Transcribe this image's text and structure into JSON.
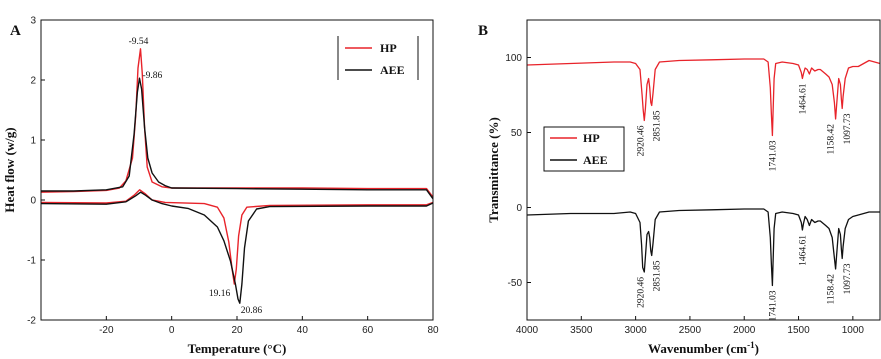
{
  "chart_data": [
    {
      "panel": "A",
      "type": "line",
      "xlabel": "Temperature (°C)",
      "ylabel": "Heat flow (w/g)",
      "xlim": [
        -40,
        80
      ],
      "ylim": [
        -2,
        3
      ],
      "xticks": [
        -20,
        0,
        20,
        40,
        60,
        80
      ],
      "yticks": [
        -2,
        -1,
        0,
        1,
        2,
        3
      ],
      "legend": {
        "placement": "top-right",
        "entries": [
          "HP",
          "AEE"
        ]
      },
      "colors": {
        "HP": "#e8232a",
        "AEE": "#111111"
      },
      "series": [
        {
          "name": "HP",
          "points": [
            [
              -40,
              0.13
            ],
            [
              -30,
              0.14
            ],
            [
              -20,
              0.16
            ],
            [
              -16,
              0.2
            ],
            [
              -14,
              0.32
            ],
            [
              -12,
              0.7
            ],
            [
              -11,
              1.4
            ],
            [
              -10.3,
              2.2
            ],
            [
              -9.54,
              2.52
            ],
            [
              -9,
              2.1
            ],
            [
              -8.3,
              1.2
            ],
            [
              -7.5,
              0.55
            ],
            [
              -6,
              0.3
            ],
            [
              -3,
              0.22
            ],
            [
              0,
              0.2
            ],
            [
              20,
              0.2
            ],
            [
              40,
              0.2
            ],
            [
              60,
              0.19
            ],
            [
              78,
              0.19
            ],
            [
              80,
              0.05
            ]
          ]
        },
        {
          "name": "HP",
          "points": [
            [
              -40,
              -0.04
            ],
            [
              -20,
              -0.05
            ],
            [
              -14,
              -0.02
            ],
            [
              -11.5,
              0.08
            ],
            [
              -9.8,
              0.17
            ],
            [
              -8,
              0.1
            ],
            [
              -6,
              0.0
            ],
            [
              -2,
              -0.04
            ],
            [
              10,
              -0.06
            ],
            [
              14,
              -0.12
            ],
            [
              16,
              -0.3
            ],
            [
              17.5,
              -0.7
            ],
            [
              18.5,
              -1.15
            ],
            [
              19.16,
              -1.4
            ],
            [
              19.8,
              -1.15
            ],
            [
              20.5,
              -0.6
            ],
            [
              21.5,
              -0.25
            ],
            [
              23,
              -0.12
            ],
            [
              30,
              -0.09
            ],
            [
              60,
              -0.08
            ],
            [
              78,
              -0.08
            ],
            [
              80,
              -0.04
            ]
          ]
        },
        {
          "name": "AEE",
          "points": [
            [
              -40,
              0.15
            ],
            [
              -30,
              0.15
            ],
            [
              -20,
              0.17
            ],
            [
              -15,
              0.22
            ],
            [
              -13,
              0.4
            ],
            [
              -11.5,
              1.1
            ],
            [
              -10.5,
              1.8
            ],
            [
              -9.86,
              2.03
            ],
            [
              -9.2,
              1.85
            ],
            [
              -8.3,
              1.2
            ],
            [
              -7.3,
              0.7
            ],
            [
              -6,
              0.45
            ],
            [
              -4,
              0.3
            ],
            [
              -2,
              0.24
            ],
            [
              0,
              0.2
            ],
            [
              20,
              0.19
            ],
            [
              40,
              0.18
            ],
            [
              60,
              0.17
            ],
            [
              78,
              0.17
            ],
            [
              80,
              0.02
            ]
          ]
        },
        {
          "name": "AEE",
          "points": [
            [
              -40,
              -0.06
            ],
            [
              -20,
              -0.07
            ],
            [
              -14,
              -0.03
            ],
            [
              -11,
              0.07
            ],
            [
              -9.5,
              0.13
            ],
            [
              -8,
              0.08
            ],
            [
              -6,
              0.0
            ],
            [
              -3,
              -0.06
            ],
            [
              0,
              -0.1
            ],
            [
              5,
              -0.14
            ],
            [
              10,
              -0.25
            ],
            [
              14,
              -0.45
            ],
            [
              16,
              -0.68
            ],
            [
              18,
              -1.02
            ],
            [
              19.5,
              -1.4
            ],
            [
              20.3,
              -1.65
            ],
            [
              20.86,
              -1.72
            ],
            [
              21.5,
              -1.4
            ],
            [
              22.3,
              -0.8
            ],
            [
              23.5,
              -0.35
            ],
            [
              26,
              -0.15
            ],
            [
              30,
              -0.11
            ],
            [
              60,
              -0.1
            ],
            [
              78,
              -0.1
            ],
            [
              80,
              -0.05
            ]
          ]
        }
      ],
      "annotations": [
        {
          "text": "-9.54",
          "x": -9.54,
          "y": 2.52
        },
        {
          "text": "-9.86",
          "x": -9.86,
          "y": 2.03
        },
        {
          "text": "19.16",
          "x": 19.16,
          "y": -1.4
        },
        {
          "text": "20.86",
          "x": 20.86,
          "y": -1.72
        }
      ]
    },
    {
      "panel": "B",
      "type": "line",
      "xlabel": "Wavenumber (cm",
      "xlabel_sup": "-1",
      "xlabel_suffix": ")",
      "ylabel": "Transmittance (%)",
      "xlim": [
        4000,
        750
      ],
      "ylim": [
        -75,
        125
      ],
      "xticks": [
        4000,
        3500,
        3000,
        2500,
        2000,
        1500,
        1000
      ],
      "yticks": [
        -50,
        0,
        50,
        100
      ],
      "legend": {
        "placement": "center-left",
        "entries": [
          "HP",
          "AEE"
        ]
      },
      "colors": {
        "HP": "#e8232a",
        "AEE": "#111111"
      },
      "series": [
        {
          "name": "HP",
          "points": [
            [
              4000,
              95
            ],
            [
              3600,
              96
            ],
            [
              3200,
              97
            ],
            [
              3050,
              97
            ],
            [
              3000,
              96
            ],
            [
              2960,
              92
            ],
            [
              2940,
              75
            ],
            [
              2930,
              65
            ],
            [
              2920.46,
              58
            ],
            [
              2910,
              66
            ],
            [
              2895,
              82
            ],
            [
              2880,
              86
            ],
            [
              2870,
              80
            ],
            [
              2860,
              70
            ],
            [
              2851.85,
              68
            ],
            [
              2840,
              76
            ],
            [
              2820,
              92
            ],
            [
              2780,
              97
            ],
            [
              2600,
              98
            ],
            [
              2300,
              98.5
            ],
            [
              2000,
              99
            ],
            [
              1820,
              99
            ],
            [
              1780,
              97
            ],
            [
              1760,
              80
            ],
            [
              1750,
              62
            ],
            [
              1741.03,
              48
            ],
            [
              1735,
              62
            ],
            [
              1725,
              86
            ],
            [
              1710,
              96
            ],
            [
              1650,
              97
            ],
            [
              1550,
              96
            ],
            [
              1500,
              95
            ],
            [
              1475,
              90
            ],
            [
              1464.61,
              86
            ],
            [
              1455,
              89
            ],
            [
              1440,
              93
            ],
            [
              1420,
              92
            ],
            [
              1400,
              89
            ],
            [
              1380,
              93
            ],
            [
              1350,
              91
            ],
            [
              1320,
              92
            ],
            [
              1300,
              92
            ],
            [
              1250,
              89
            ],
            [
              1220,
              87
            ],
            [
              1190,
              82
            ],
            [
              1170,
              70
            ],
            [
              1158.42,
              59
            ],
            [
              1150,
              68
            ],
            [
              1130,
              86
            ],
            [
              1115,
              82
            ],
            [
              1105,
              72
            ],
            [
              1097.73,
              66
            ],
            [
              1090,
              74
            ],
            [
              1070,
              86
            ],
            [
              1040,
              93
            ],
            [
              1000,
              94
            ],
            [
              950,
              94
            ],
            [
              900,
              96
            ],
            [
              850,
              98
            ],
            [
              800,
              97
            ],
            [
              750,
              96
            ]
          ]
        },
        {
          "name": "AEE",
          "points": [
            [
              4000,
              -5
            ],
            [
              3600,
              -4
            ],
            [
              3200,
              -4
            ],
            [
              3050,
              -3
            ],
            [
              3000,
              -4
            ],
            [
              2960,
              -10
            ],
            [
              2945,
              -25
            ],
            [
              2935,
              -40
            ],
            [
              2920.46,
              -43
            ],
            [
              2910,
              -33
            ],
            [
              2895,
              -18
            ],
            [
              2880,
              -16
            ],
            [
              2870,
              -20
            ],
            [
              2860,
              -29
            ],
            [
              2851.85,
              -32
            ],
            [
              2840,
              -24
            ],
            [
              2820,
              -8
            ],
            [
              2780,
              -3
            ],
            [
              2600,
              -2
            ],
            [
              2300,
              -1.5
            ],
            [
              2000,
              -1
            ],
            [
              1820,
              -1
            ],
            [
              1780,
              -3
            ],
            [
              1760,
              -20
            ],
            [
              1750,
              -38
            ],
            [
              1741.03,
              -52
            ],
            [
              1735,
              -38
            ],
            [
              1725,
              -14
            ],
            [
              1710,
              -4
            ],
            [
              1650,
              -3
            ],
            [
              1550,
              -4
            ],
            [
              1500,
              -5
            ],
            [
              1475,
              -10
            ],
            [
              1464.61,
              -15
            ],
            [
              1455,
              -11
            ],
            [
              1440,
              -6
            ],
            [
              1420,
              -8
            ],
            [
              1400,
              -12
            ],
            [
              1380,
              -8
            ],
            [
              1350,
              -10
            ],
            [
              1320,
              -9
            ],
            [
              1300,
              -9
            ],
            [
              1250,
              -12
            ],
            [
              1220,
              -14
            ],
            [
              1190,
              -20
            ],
            [
              1175,
              -30
            ],
            [
              1158.42,
              -41
            ],
            [
              1150,
              -32
            ],
            [
              1130,
              -14
            ],
            [
              1115,
              -18
            ],
            [
              1105,
              -28
            ],
            [
              1097.73,
              -34
            ],
            [
              1090,
              -26
            ],
            [
              1070,
              -14
            ],
            [
              1040,
              -8
            ],
            [
              1000,
              -6
            ],
            [
              950,
              -5
            ],
            [
              900,
              -4
            ],
            [
              850,
              -3
            ],
            [
              800,
              -3
            ],
            [
              750,
              -3
            ]
          ]
        }
      ],
      "annotations": [
        {
          "text": "2920.46",
          "x": 2920.46,
          "series": "HP"
        },
        {
          "text": "2851.85",
          "x": 2851.85,
          "series": "HP"
        },
        {
          "text": "1741.03",
          "x": 1741.03,
          "series": "HP"
        },
        {
          "text": "1464.61",
          "x": 1464.61,
          "series": "HP"
        },
        {
          "text": "1158.42",
          "x": 1158.42,
          "series": "HP"
        },
        {
          "text": "1097.73",
          "x": 1097.73,
          "series": "HP"
        },
        {
          "text": "2920.46",
          "x": 2920.46,
          "series": "AEE"
        },
        {
          "text": "2851.85",
          "x": 2851.85,
          "series": "AEE"
        },
        {
          "text": "1741.03",
          "x": 1741.03,
          "series": "AEE"
        },
        {
          "text": "1464.61",
          "x": 1464.61,
          "series": "AEE"
        },
        {
          "text": "1158.42",
          "x": 1158.42,
          "series": "AEE"
        },
        {
          "text": "1097.73",
          "x": 1097.73,
          "series": "AEE"
        }
      ]
    }
  ]
}
